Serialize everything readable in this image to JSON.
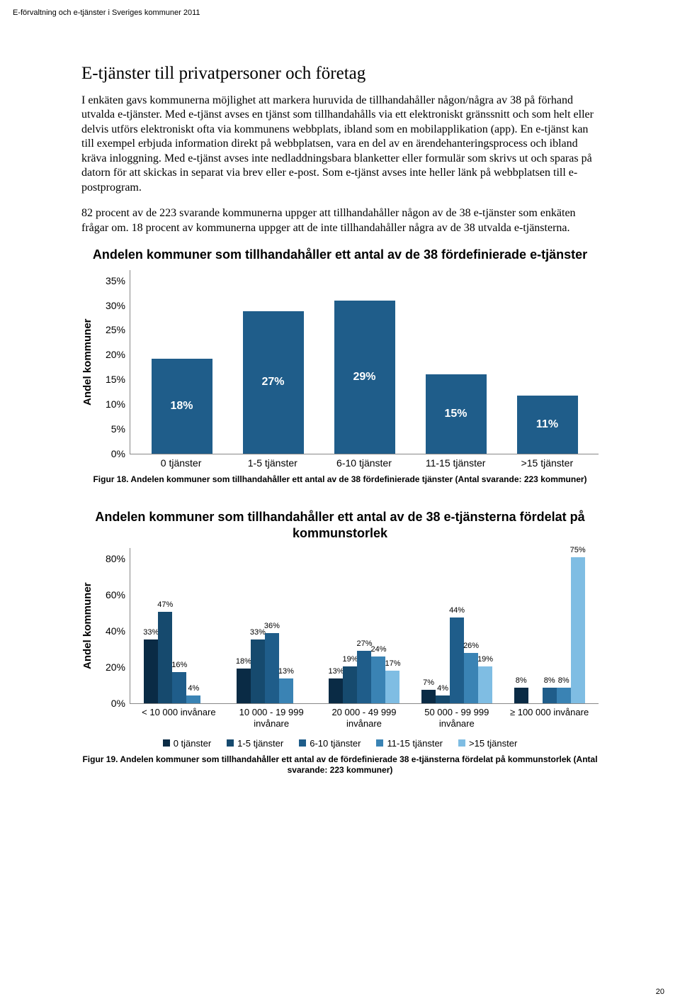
{
  "header": "E-förvaltning och e-tjänster i Sveriges kommuner 2011",
  "page_number": "20",
  "section_title": "E-tjänster till privatpersoner och företag",
  "para1": "I enkäten gavs kommunerna möjlighet att markera huruvida de tillhandahåller någon/några av 38 på förhand utvalda e-tjänster. Med e-tjänst avses en tjänst som tillhandahålls via ett elektroniskt gränssnitt och som helt eller delvis utförs elektroniskt ofta via kommunens webbplats, ibland som en mobilapplikation (app). En e-tjänst kan till exempel erbjuda information direkt på webbplatsen, vara en del av en ärendehanteringsprocess och ibland kräva inloggning. Med e-tjänst avses inte nedladdningsbara blanketter eller formulär som skrivs ut och sparas på datorn för att skickas in separat via brev eller e-post. Som e-tjänst avses inte heller länk på webbplatsen till e-postprogram.",
  "para2": "82 procent av de 223 svarande kommunerna uppger att tillhandahåller någon av de 38 e-tjänster som enkäten frågar om. 18 procent av kommunerna uppger att de inte tillhandahåller några av de 38 utvalda e-tjänsterna.",
  "chart1": {
    "title": "Andelen kommuner som tillhandahåller ett antal av de 38 fördefinierade e-tjänster",
    "ylabel": "Andel kommuner",
    "ymax": 35,
    "yticks": [
      "35%",
      "30%",
      "25%",
      "20%",
      "15%",
      "10%",
      "5%",
      "0%"
    ],
    "categories": [
      "0 tjänster",
      "1-5 tjänster",
      "6-10 tjänster",
      "11-15 tjänster",
      ">15 tjänster"
    ],
    "values": [
      18,
      27,
      29,
      15,
      11
    ],
    "labels": [
      "18%",
      "27%",
      "29%",
      "15%",
      "11%"
    ],
    "color": "#1f5d8a",
    "caption": "Figur 18. Andelen kommuner som tillhandahåller ett antal av de 38 fördefinierade tjänster (Antal svarande: 223 kommuner)"
  },
  "chart2": {
    "title": "Andelen kommuner som tillhandahåller ett antal av de 38 e-tjänsterna fördelat på kommunstorlek",
    "ylabel": "Andel kommuner",
    "ymax": 80,
    "yticks": [
      "80%",
      "60%",
      "40%",
      "20%",
      "0%"
    ],
    "categories": [
      "< 10 000 invånare",
      "10 000 - 19 999 invånare",
      "20 000 - 49 999 invånare",
      "50 000 - 99 999 invånare",
      "≥ 100 000 invånare"
    ],
    "series": [
      {
        "name": "0 tjänster",
        "color": "#0a2b45",
        "values": [
          33,
          18,
          13,
          7,
          8
        ],
        "labels": [
          "33%",
          "18%",
          "13%",
          "7%",
          "8%"
        ]
      },
      {
        "name": "1-5 tjänster",
        "color": "#164a6e",
        "values": [
          47,
          33,
          19,
          4,
          0
        ],
        "labels": [
          "47%",
          "33%",
          "19%",
          "4%",
          ""
        ]
      },
      {
        "name": "6-10 tjänster",
        "color": "#1f5d8a",
        "values": [
          16,
          36,
          27,
          44,
          8
        ],
        "labels": [
          "16%",
          "36%",
          "27%",
          "44%",
          "8%"
        ]
      },
      {
        "name": "11-15 tjänster",
        "color": "#3a83b4",
        "values": [
          4,
          13,
          24,
          26,
          8
        ],
        "labels": [
          "4%",
          "13%",
          "24%",
          "26%",
          "8%"
        ]
      },
      {
        "name": ">15 tjänster",
        "color": "#7fbde3",
        "values": [
          0,
          0,
          17,
          19,
          75
        ],
        "labels": [
          "",
          "",
          "17%",
          "19%",
          "75%"
        ]
      }
    ],
    "caption": "Figur 19. Andelen kommuner som tillhandahåller ett antal av de fördefinierade 38 e-tjänsterna fördelat på kommunstorlek (Antal svarande: 223 kommuner)"
  }
}
